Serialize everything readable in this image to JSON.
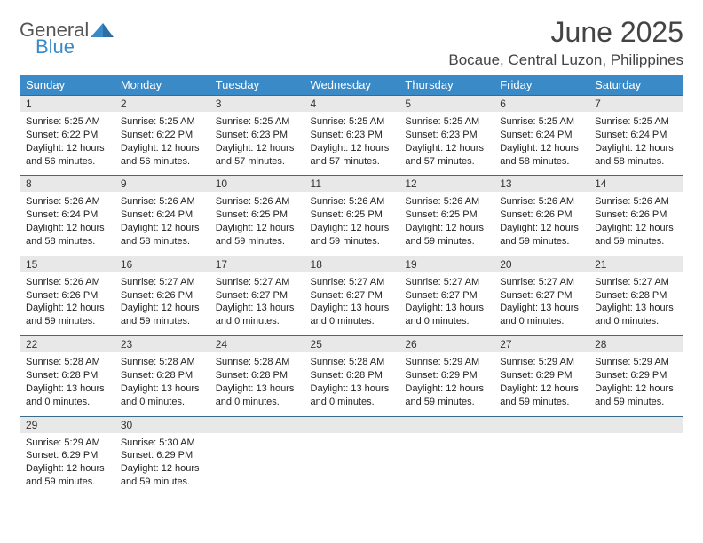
{
  "logo": {
    "line1": "General",
    "line2": "Blue",
    "color_gray": "#555555",
    "color_blue": "#3a8ac8"
  },
  "title": {
    "month": "June 2025",
    "location": "Bocaue, Central Luzon, Philippines"
  },
  "colors": {
    "header_bg": "#3a8ac8",
    "header_text": "#ffffff",
    "daynum_bg": "#e8e8e8",
    "daynum_border": "#3a6a8c",
    "body_text": "#222222"
  },
  "day_names": [
    "Sunday",
    "Monday",
    "Tuesday",
    "Wednesday",
    "Thursday",
    "Friday",
    "Saturday"
  ],
  "weeks": [
    [
      {
        "n": "1",
        "sr": "Sunrise: 5:25 AM",
        "ss": "Sunset: 6:22 PM",
        "d1": "Daylight: 12 hours",
        "d2": "and 56 minutes."
      },
      {
        "n": "2",
        "sr": "Sunrise: 5:25 AM",
        "ss": "Sunset: 6:22 PM",
        "d1": "Daylight: 12 hours",
        "d2": "and 56 minutes."
      },
      {
        "n": "3",
        "sr": "Sunrise: 5:25 AM",
        "ss": "Sunset: 6:23 PM",
        "d1": "Daylight: 12 hours",
        "d2": "and 57 minutes."
      },
      {
        "n": "4",
        "sr": "Sunrise: 5:25 AM",
        "ss": "Sunset: 6:23 PM",
        "d1": "Daylight: 12 hours",
        "d2": "and 57 minutes."
      },
      {
        "n": "5",
        "sr": "Sunrise: 5:25 AM",
        "ss": "Sunset: 6:23 PM",
        "d1": "Daylight: 12 hours",
        "d2": "and 57 minutes."
      },
      {
        "n": "6",
        "sr": "Sunrise: 5:25 AM",
        "ss": "Sunset: 6:24 PM",
        "d1": "Daylight: 12 hours",
        "d2": "and 58 minutes."
      },
      {
        "n": "7",
        "sr": "Sunrise: 5:25 AM",
        "ss": "Sunset: 6:24 PM",
        "d1": "Daylight: 12 hours",
        "d2": "and 58 minutes."
      }
    ],
    [
      {
        "n": "8",
        "sr": "Sunrise: 5:26 AM",
        "ss": "Sunset: 6:24 PM",
        "d1": "Daylight: 12 hours",
        "d2": "and 58 minutes."
      },
      {
        "n": "9",
        "sr": "Sunrise: 5:26 AM",
        "ss": "Sunset: 6:24 PM",
        "d1": "Daylight: 12 hours",
        "d2": "and 58 minutes."
      },
      {
        "n": "10",
        "sr": "Sunrise: 5:26 AM",
        "ss": "Sunset: 6:25 PM",
        "d1": "Daylight: 12 hours",
        "d2": "and 59 minutes."
      },
      {
        "n": "11",
        "sr": "Sunrise: 5:26 AM",
        "ss": "Sunset: 6:25 PM",
        "d1": "Daylight: 12 hours",
        "d2": "and 59 minutes."
      },
      {
        "n": "12",
        "sr": "Sunrise: 5:26 AM",
        "ss": "Sunset: 6:25 PM",
        "d1": "Daylight: 12 hours",
        "d2": "and 59 minutes."
      },
      {
        "n": "13",
        "sr": "Sunrise: 5:26 AM",
        "ss": "Sunset: 6:26 PM",
        "d1": "Daylight: 12 hours",
        "d2": "and 59 minutes."
      },
      {
        "n": "14",
        "sr": "Sunrise: 5:26 AM",
        "ss": "Sunset: 6:26 PM",
        "d1": "Daylight: 12 hours",
        "d2": "and 59 minutes."
      }
    ],
    [
      {
        "n": "15",
        "sr": "Sunrise: 5:26 AM",
        "ss": "Sunset: 6:26 PM",
        "d1": "Daylight: 12 hours",
        "d2": "and 59 minutes."
      },
      {
        "n": "16",
        "sr": "Sunrise: 5:27 AM",
        "ss": "Sunset: 6:26 PM",
        "d1": "Daylight: 12 hours",
        "d2": "and 59 minutes."
      },
      {
        "n": "17",
        "sr": "Sunrise: 5:27 AM",
        "ss": "Sunset: 6:27 PM",
        "d1": "Daylight: 13 hours",
        "d2": "and 0 minutes."
      },
      {
        "n": "18",
        "sr": "Sunrise: 5:27 AM",
        "ss": "Sunset: 6:27 PM",
        "d1": "Daylight: 13 hours",
        "d2": "and 0 minutes."
      },
      {
        "n": "19",
        "sr": "Sunrise: 5:27 AM",
        "ss": "Sunset: 6:27 PM",
        "d1": "Daylight: 13 hours",
        "d2": "and 0 minutes."
      },
      {
        "n": "20",
        "sr": "Sunrise: 5:27 AM",
        "ss": "Sunset: 6:27 PM",
        "d1": "Daylight: 13 hours",
        "d2": "and 0 minutes."
      },
      {
        "n": "21",
        "sr": "Sunrise: 5:27 AM",
        "ss": "Sunset: 6:28 PM",
        "d1": "Daylight: 13 hours",
        "d2": "and 0 minutes."
      }
    ],
    [
      {
        "n": "22",
        "sr": "Sunrise: 5:28 AM",
        "ss": "Sunset: 6:28 PM",
        "d1": "Daylight: 13 hours",
        "d2": "and 0 minutes."
      },
      {
        "n": "23",
        "sr": "Sunrise: 5:28 AM",
        "ss": "Sunset: 6:28 PM",
        "d1": "Daylight: 13 hours",
        "d2": "and 0 minutes."
      },
      {
        "n": "24",
        "sr": "Sunrise: 5:28 AM",
        "ss": "Sunset: 6:28 PM",
        "d1": "Daylight: 13 hours",
        "d2": "and 0 minutes."
      },
      {
        "n": "25",
        "sr": "Sunrise: 5:28 AM",
        "ss": "Sunset: 6:28 PM",
        "d1": "Daylight: 13 hours",
        "d2": "and 0 minutes."
      },
      {
        "n": "26",
        "sr": "Sunrise: 5:29 AM",
        "ss": "Sunset: 6:29 PM",
        "d1": "Daylight: 12 hours",
        "d2": "and 59 minutes."
      },
      {
        "n": "27",
        "sr": "Sunrise: 5:29 AM",
        "ss": "Sunset: 6:29 PM",
        "d1": "Daylight: 12 hours",
        "d2": "and 59 minutes."
      },
      {
        "n": "28",
        "sr": "Sunrise: 5:29 AM",
        "ss": "Sunset: 6:29 PM",
        "d1": "Daylight: 12 hours",
        "d2": "and 59 minutes."
      }
    ],
    [
      {
        "n": "29",
        "sr": "Sunrise: 5:29 AM",
        "ss": "Sunset: 6:29 PM",
        "d1": "Daylight: 12 hours",
        "d2": "and 59 minutes."
      },
      {
        "n": "30",
        "sr": "Sunrise: 5:30 AM",
        "ss": "Sunset: 6:29 PM",
        "d1": "Daylight: 12 hours",
        "d2": "and 59 minutes."
      },
      {
        "empty": true
      },
      {
        "empty": true
      },
      {
        "empty": true
      },
      {
        "empty": true
      },
      {
        "empty": true
      }
    ]
  ]
}
